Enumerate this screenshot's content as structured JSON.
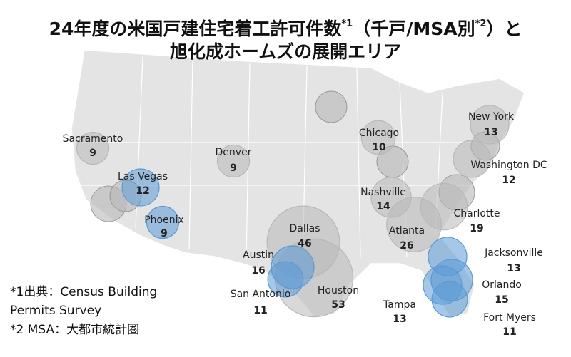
{
  "chart_data": {
    "type": "bubble_map",
    "title": {
      "line1": [
        "24年度の米国戸建住宅着工許可件数",
        "*1",
        "（千戸/MSA別",
        "*2",
        "）と"
      ],
      "line2": "旭化成ホームズの展開エリア"
    },
    "points": [
      {
        "name": "Sacramento",
        "value": 9,
        "color": "#b8b8b8"
      },
      {
        "name": "Denver",
        "value": 9,
        "color": "#b8b8b8"
      },
      {
        "name": "Las Vegas",
        "value": 12,
        "color": "#5b9bd5"
      },
      {
        "name": "Phoenix",
        "value": 9,
        "color": "#5b9bd5"
      },
      {
        "name": "Dallas",
        "value": 46,
        "color": "#b8b8b8"
      },
      {
        "name": "Houston",
        "value": 53,
        "color": "#b8b8b8"
      },
      {
        "name": "Austin",
        "value": 16,
        "color": "#5b9bd5"
      },
      {
        "name": "San Antonio",
        "value": 11,
        "color": "#5b9bd5"
      },
      {
        "name": "Chicago",
        "value": 10,
        "color": "#b8b8b8"
      },
      {
        "name": "Nashville",
        "value": 14,
        "color": "#b8b8b8"
      },
      {
        "name": "Atlanta",
        "value": 26,
        "color": "#b8b8b8"
      },
      {
        "name": "Charlotte",
        "value": 19,
        "color": "#b8b8b8"
      },
      {
        "name": "New York",
        "value": 13,
        "color": "#b8b8b8"
      },
      {
        "name": "Washington DC",
        "value": 12,
        "color": "#b8b8b8"
      },
      {
        "name": "Jacksonville",
        "value": 13,
        "color": "#5b9bd5"
      },
      {
        "name": "Orlando",
        "value": 15,
        "color": "#5b9bd5"
      },
      {
        "name": "Tampa",
        "value": 13,
        "color": "#5b9bd5"
      },
      {
        "name": "Fort Myers",
        "value": 11,
        "color": "#5b9bd5"
      }
    ],
    "notes": [
      "*1出典：Census Building",
      "Permits Survey",
      "*2 MSA：大都市統計圏"
    ]
  }
}
